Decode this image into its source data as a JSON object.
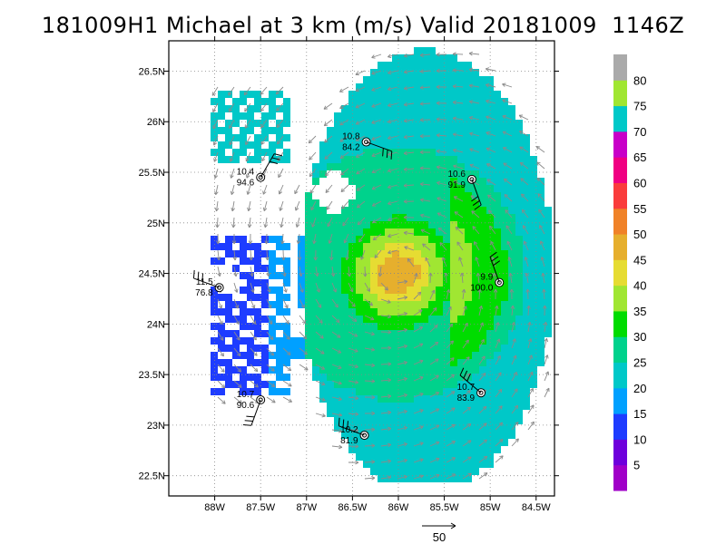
{
  "title": "181009H1 Michael at 3 km (m/s) Valid 20181009  1146Z",
  "chart_data": {
    "type": "heatmap",
    "title": "181009H1 Michael at 3 km (m/s) Valid 20181009  1146Z",
    "xlabel": "",
    "ylabel": "",
    "xlim": [
      -88.5,
      -84.3
    ],
    "ylim": [
      22.3,
      26.8
    ],
    "x_ticks": [
      {
        "value": -88.0,
        "label": "88W"
      },
      {
        "value": -87.5,
        "label": "87.5W"
      },
      {
        "value": -87.0,
        "label": "87W"
      },
      {
        "value": -86.5,
        "label": "86.5W"
      },
      {
        "value": -86.0,
        "label": "86W"
      },
      {
        "value": -85.5,
        "label": "85.5W"
      },
      {
        "value": -85.0,
        "label": "85W"
      },
      {
        "value": -84.5,
        "label": "84.5W"
      }
    ],
    "y_ticks": [
      {
        "value": 22.5,
        "label": "22.5N"
      },
      {
        "value": 23.0,
        "label": "23N"
      },
      {
        "value": 23.5,
        "label": "23.5N"
      },
      {
        "value": 24.0,
        "label": "24N"
      },
      {
        "value": 24.5,
        "label": "24.5N"
      },
      {
        "value": 25.0,
        "label": "25N"
      },
      {
        "value": 25.5,
        "label": "25.5N"
      },
      {
        "value": 26.0,
        "label": "26N"
      },
      {
        "value": 26.5,
        "label": "26.5N"
      }
    ],
    "grid": true,
    "colorbar": {
      "levels": [
        0,
        5,
        10,
        15,
        20,
        25,
        30,
        35,
        40,
        45,
        50,
        55,
        60,
        65,
        70,
        75,
        80,
        85
      ],
      "labels": [
        "5",
        "10",
        "15",
        "20",
        "25",
        "30",
        "35",
        "40",
        "45",
        "50",
        "55",
        "60",
        "65",
        "70",
        "75",
        "80"
      ],
      "colors": [
        "#a000c8",
        "#6e00dc",
        "#1e3cff",
        "#00a0ff",
        "#00c8c8",
        "#00d28c",
        "#00dc00",
        "#a0e632",
        "#e6dc32",
        "#e6af2d",
        "#f08228",
        "#fa3c3c",
        "#f00082",
        "#c800c8",
        "#00c8c8",
        "#a0e632",
        "#aaaaaa"
      ]
    },
    "storm_center": {
      "lon": -86.0,
      "lat": 24.5
    },
    "stations": [
      {
        "lon": -86.35,
        "lat": 25.8,
        "top": "10.8",
        "bottom": "84.2"
      },
      {
        "lon": -87.5,
        "lat": 25.45,
        "top": "10.4",
        "bottom": "94.6"
      },
      {
        "lon": -85.2,
        "lat": 25.43,
        "top": "10.6",
        "bottom": "91.9"
      },
      {
        "lon": -87.95,
        "lat": 24.36,
        "top": "11.5",
        "bottom": "76.8"
      },
      {
        "lon": -84.9,
        "lat": 24.41,
        "top": "9.9",
        "bottom": "100.0"
      },
      {
        "lon": -87.5,
        "lat": 23.25,
        "top": "10.7",
        "bottom": "90.6"
      },
      {
        "lon": -85.1,
        "lat": 23.32,
        "top": "10.7",
        "bottom": "83.9"
      },
      {
        "lon": -86.37,
        "lat": 22.9,
        "top": "10.2",
        "bottom": "81.9"
      }
    ],
    "vector_scale_label": "50"
  }
}
